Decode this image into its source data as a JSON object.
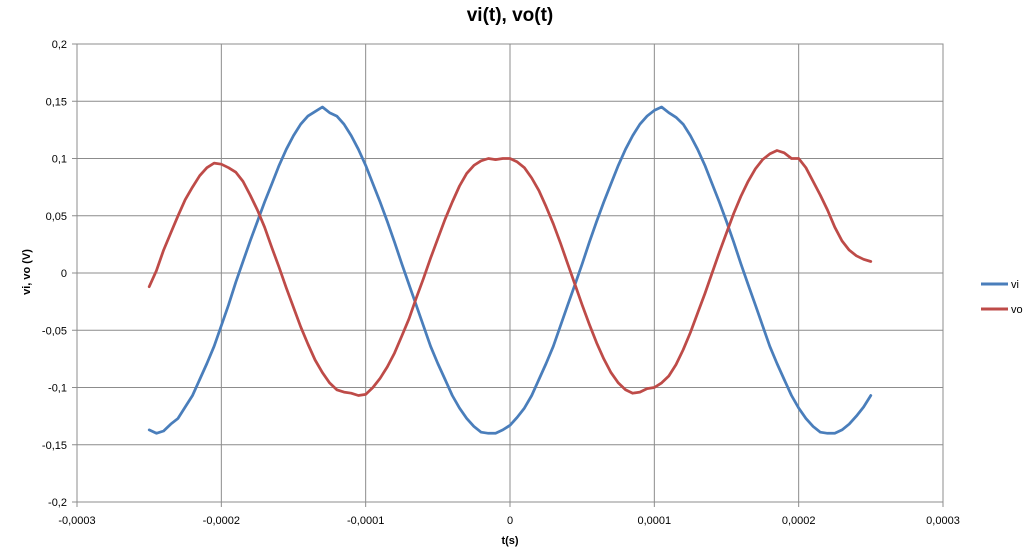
{
  "chart_data": {
    "type": "line",
    "title": "vi(t), vo(t)",
    "xlabel": "t(s)",
    "ylabel": "vi, vo (V)",
    "xlim": [
      -0.0003,
      0.0003
    ],
    "ylim": [
      -0.2,
      0.2
    ],
    "x_ticks": [
      -0.0003,
      -0.0002,
      -0.0001,
      0,
      0.0001,
      0.0002,
      0.0003
    ],
    "x_tick_labels": [
      "-0,0003",
      "-0,0002",
      "-0,0001",
      "0",
      "0,0001",
      "0,0002",
      "0,0003"
    ],
    "y_ticks": [
      -0.2,
      -0.15,
      -0.1,
      -0.05,
      0,
      0.05,
      0.1,
      0.15,
      0.2
    ],
    "y_tick_labels": [
      "-0,2",
      "-0,15",
      "-0,1",
      "-0,05",
      "0",
      "0,05",
      "0,1",
      "0,15",
      "0,2"
    ],
    "grid": true,
    "legend_position": "right",
    "series": [
      {
        "name": "vi",
        "color": "#4a7ebb",
        "points": [
          [
            -0.00025,
            -0.137
          ],
          [
            -0.000245,
            -0.14
          ],
          [
            -0.00024,
            -0.138
          ],
          [
            -0.000235,
            -0.132
          ],
          [
            -0.00023,
            -0.127
          ],
          [
            -0.000225,
            -0.117
          ],
          [
            -0.00022,
            -0.107
          ],
          [
            -0.000215,
            -0.093
          ],
          [
            -0.00021,
            -0.079
          ],
          [
            -0.000205,
            -0.064
          ],
          [
            -0.0002,
            -0.046
          ],
          [
            -0.000195,
            -0.028
          ],
          [
            -0.00019,
            -0.008
          ],
          [
            -0.000185,
            0.01
          ],
          [
            -0.00018,
            0.028
          ],
          [
            -0.000175,
            0.045
          ],
          [
            -0.00017,
            0.062
          ],
          [
            -0.000165,
            0.078
          ],
          [
            -0.00016,
            0.094
          ],
          [
            -0.000155,
            0.108
          ],
          [
            -0.00015,
            0.12
          ],
          [
            -0.000145,
            0.13
          ],
          [
            -0.00014,
            0.137
          ],
          [
            -0.000135,
            0.141
          ],
          [
            -0.00013,
            0.145
          ],
          [
            -0.000125,
            0.14
          ],
          [
            -0.00012,
            0.137
          ],
          [
            -0.000115,
            0.13
          ],
          [
            -0.00011,
            0.12
          ],
          [
            -0.000105,
            0.108
          ],
          [
            -0.0001,
            0.094
          ],
          [
            -9.5e-05,
            0.078
          ],
          [
            -9e-05,
            0.062
          ],
          [
            -8.5e-05,
            0.045
          ],
          [
            -8e-05,
            0.027
          ],
          [
            -7.5e-05,
            0.008
          ],
          [
            -7e-05,
            -0.01
          ],
          [
            -6.5e-05,
            -0.028
          ],
          [
            -6e-05,
            -0.046
          ],
          [
            -5.5e-05,
            -0.064
          ],
          [
            -5e-05,
            -0.079
          ],
          [
            -4.5e-05,
            -0.093
          ],
          [
            -4e-05,
            -0.107
          ],
          [
            -3.5e-05,
            -0.118
          ],
          [
            -3e-05,
            -0.127
          ],
          [
            -2.5e-05,
            -0.134
          ],
          [
            -2e-05,
            -0.139
          ],
          [
            -1.5e-05,
            -0.14
          ],
          [
            -1e-05,
            -0.14
          ],
          [
            -5e-06,
            -0.137
          ],
          [
            0,
            -0.133
          ],
          [
            5e-06,
            -0.126
          ],
          [
            1e-05,
            -0.118
          ],
          [
            1.5e-05,
            -0.107
          ],
          [
            2e-05,
            -0.093
          ],
          [
            2.5e-05,
            -0.079
          ],
          [
            3e-05,
            -0.064
          ],
          [
            3.5e-05,
            -0.046
          ],
          [
            4e-05,
            -0.028
          ],
          [
            4.5e-05,
            -0.01
          ],
          [
            5e-05,
            0.008
          ],
          [
            5.5e-05,
            0.027
          ],
          [
            6e-05,
            0.045
          ],
          [
            6.5e-05,
            0.062
          ],
          [
            7e-05,
            0.078
          ],
          [
            7.5e-05,
            0.094
          ],
          [
            8e-05,
            0.108
          ],
          [
            8.5e-05,
            0.12
          ],
          [
            9e-05,
            0.13
          ],
          [
            9.5e-05,
            0.137
          ],
          [
            0.0001,
            0.142
          ],
          [
            0.000105,
            0.145
          ],
          [
            0.00011,
            0.14
          ],
          [
            0.000115,
            0.136
          ],
          [
            0.00012,
            0.13
          ],
          [
            0.000125,
            0.12
          ],
          [
            0.00013,
            0.108
          ],
          [
            0.000135,
            0.094
          ],
          [
            0.00014,
            0.078
          ],
          [
            0.000145,
            0.062
          ],
          [
            0.00015,
            0.045
          ],
          [
            0.000155,
            0.027
          ],
          [
            0.00016,
            0.008
          ],
          [
            0.000165,
            -0.01
          ],
          [
            0.00017,
            -0.028
          ],
          [
            0.000175,
            -0.046
          ],
          [
            0.00018,
            -0.064
          ],
          [
            0.000185,
            -0.079
          ],
          [
            0.00019,
            -0.093
          ],
          [
            0.000195,
            -0.107
          ],
          [
            0.0002,
            -0.118
          ],
          [
            0.000205,
            -0.127
          ],
          [
            0.00021,
            -0.134
          ],
          [
            0.000215,
            -0.139
          ],
          [
            0.00022,
            -0.14
          ],
          [
            0.000225,
            -0.14
          ],
          [
            0.00023,
            -0.137
          ],
          [
            0.000235,
            -0.132
          ],
          [
            0.00024,
            -0.125
          ],
          [
            0.000245,
            -0.117
          ],
          [
            0.00025,
            -0.107
          ]
        ]
      },
      {
        "name": "vo",
        "color": "#be4b48",
        "points": [
          [
            -0.00025,
            -0.012
          ],
          [
            -0.000245,
            0.002
          ],
          [
            -0.00024,
            0.02
          ],
          [
            -0.000235,
            0.035
          ],
          [
            -0.00023,
            0.05
          ],
          [
            -0.000225,
            0.064
          ],
          [
            -0.00022,
            0.075
          ],
          [
            -0.000215,
            0.085
          ],
          [
            -0.00021,
            0.092
          ],
          [
            -0.000205,
            0.096
          ],
          [
            -0.0002,
            0.095
          ],
          [
            -0.000195,
            0.092
          ],
          [
            -0.00019,
            0.088
          ],
          [
            -0.000185,
            0.08
          ],
          [
            -0.00018,
            0.068
          ],
          [
            -0.000175,
            0.055
          ],
          [
            -0.00017,
            0.04
          ],
          [
            -0.000165,
            0.022
          ],
          [
            -0.00016,
            0.005
          ],
          [
            -0.000155,
            -0.013
          ],
          [
            -0.00015,
            -0.03
          ],
          [
            -0.000145,
            -0.047
          ],
          [
            -0.00014,
            -0.062
          ],
          [
            -0.000135,
            -0.076
          ],
          [
            -0.00013,
            -0.087
          ],
          [
            -0.000125,
            -0.096
          ],
          [
            -0.00012,
            -0.102
          ],
          [
            -0.000115,
            -0.104
          ],
          [
            -0.00011,
            -0.105
          ],
          [
            -0.000105,
            -0.107
          ],
          [
            -0.0001,
            -0.106
          ],
          [
            -9.5e-05,
            -0.1
          ],
          [
            -9e-05,
            -0.092
          ],
          [
            -8.5e-05,
            -0.082
          ],
          [
            -8e-05,
            -0.07
          ],
          [
            -7.5e-05,
            -0.055
          ],
          [
            -7e-05,
            -0.04
          ],
          [
            -6.5e-05,
            -0.022
          ],
          [
            -6e-05,
            -0.005
          ],
          [
            -5.5e-05,
            0.013
          ],
          [
            -5e-05,
            0.03
          ],
          [
            -4.5e-05,
            0.047
          ],
          [
            -4e-05,
            0.062
          ],
          [
            -3.5e-05,
            0.076
          ],
          [
            -3e-05,
            0.087
          ],
          [
            -2.5e-05,
            0.094
          ],
          [
            -2e-05,
            0.098
          ],
          [
            -1.5e-05,
            0.1
          ],
          [
            -1e-05,
            0.099
          ],
          [
            -5e-06,
            0.1
          ],
          [
            0,
            0.1
          ],
          [
            5e-06,
            0.097
          ],
          [
            1e-05,
            0.092
          ],
          [
            1.5e-05,
            0.083
          ],
          [
            2e-05,
            0.072
          ],
          [
            2.5e-05,
            0.058
          ],
          [
            3e-05,
            0.043
          ],
          [
            3.5e-05,
            0.026
          ],
          [
            4e-05,
            0.008
          ],
          [
            4.5e-05,
            -0.01
          ],
          [
            5e-05,
            -0.028
          ],
          [
            5.5e-05,
            -0.045
          ],
          [
            6e-05,
            -0.061
          ],
          [
            6.5e-05,
            -0.075
          ],
          [
            7e-05,
            -0.087
          ],
          [
            7.5e-05,
            -0.096
          ],
          [
            8e-05,
            -0.102
          ],
          [
            8.5e-05,
            -0.105
          ],
          [
            9e-05,
            -0.104
          ],
          [
            9.5e-05,
            -0.101
          ],
          [
            0.0001,
            -0.1
          ],
          [
            0.000105,
            -0.096
          ],
          [
            0.00011,
            -0.09
          ],
          [
            0.000115,
            -0.08
          ],
          [
            0.00012,
            -0.067
          ],
          [
            0.000125,
            -0.052
          ],
          [
            0.00013,
            -0.035
          ],
          [
            0.000135,
            -0.018
          ],
          [
            0.00014,
            0.0
          ],
          [
            0.000145,
            0.018
          ],
          [
            0.00015,
            0.035
          ],
          [
            0.000155,
            0.052
          ],
          [
            0.00016,
            0.067
          ],
          [
            0.000165,
            0.08
          ],
          [
            0.00017,
            0.091
          ],
          [
            0.000175,
            0.099
          ],
          [
            0.00018,
            0.104
          ],
          [
            0.000185,
            0.107
          ],
          [
            0.00019,
            0.105
          ],
          [
            0.000195,
            0.1
          ],
          [
            0.0002,
            0.1
          ],
          [
            0.000205,
            0.092
          ],
          [
            0.00021,
            0.08
          ],
          [
            0.000215,
            0.068
          ],
          [
            0.00022,
            0.055
          ],
          [
            0.000225,
            0.04
          ],
          [
            0.00023,
            0.028
          ],
          [
            0.000235,
            0.02
          ],
          [
            0.00024,
            0.015
          ],
          [
            0.000245,
            0.012
          ],
          [
            0.00025,
            0.01
          ]
        ]
      }
    ]
  }
}
